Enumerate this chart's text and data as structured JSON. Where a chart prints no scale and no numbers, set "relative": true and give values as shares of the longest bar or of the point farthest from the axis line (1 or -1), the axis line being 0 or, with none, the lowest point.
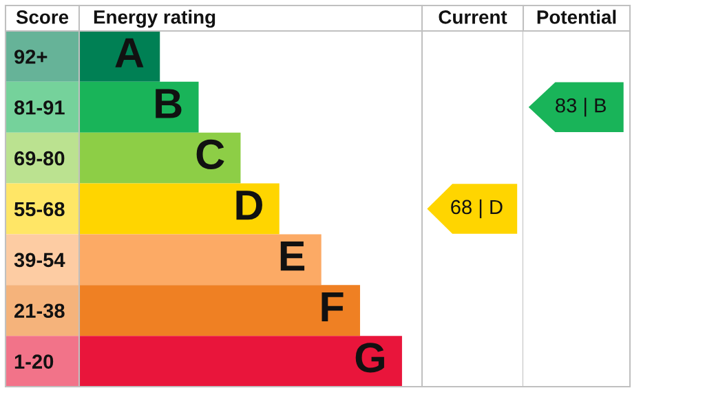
{
  "chart_data": {
    "type": "bar",
    "orientation": "horizontal",
    "relative": true,
    "ylabel": "Score",
    "xlabel": "Energy rating",
    "categories": [
      "92+",
      "81-91",
      "69-80",
      "55-68",
      "39-54",
      "21-38",
      "1-20"
    ],
    "values": [
      0.25,
      0.37,
      0.5,
      0.62,
      0.75,
      0.87,
      1
    ],
    "colors": [
      "#008054",
      "#19b459",
      "#8dce46",
      "#ffd500",
      "#fcaa65",
      "#ef8023",
      "#e9153b"
    ],
    "annotations": [
      {
        "text": "A",
        "x": 0.25,
        "y": "92+"
      },
      {
        "text": "B",
        "x": 0.37,
        "y": "81-91"
      },
      {
        "text": "C",
        "x": 0.5,
        "y": "69-80"
      },
      {
        "text": "D",
        "x": 0.62,
        "y": "55-68"
      },
      {
        "text": "E",
        "x": 0.75,
        "y": "39-54"
      },
      {
        "text": "F",
        "x": 0.87,
        "y": "21-38"
      },
      {
        "text": "G",
        "x": 1,
        "y": "1-20"
      },
      "Current",
      "68 | D",
      "Potential",
      "83 | B"
    ]
  }
}
